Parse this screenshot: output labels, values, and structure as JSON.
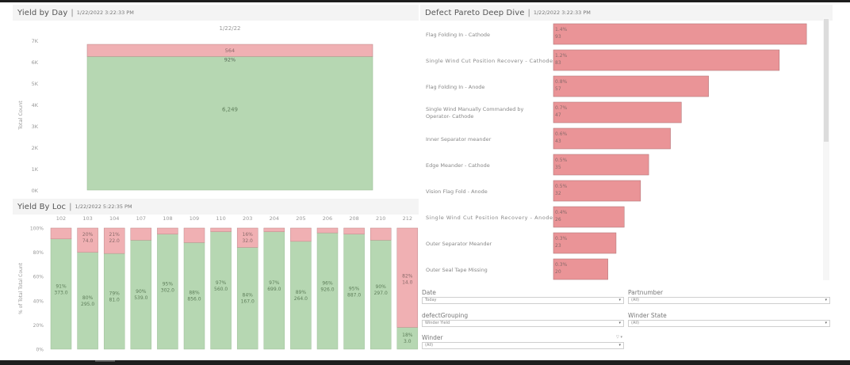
{
  "colors": {
    "good": "#b6d7b2",
    "good_border": "#9fbf9a",
    "defect": "#f0b0b3",
    "defect_border": "#c08a8c",
    "pareto_bar": "#ea9497",
    "pareto_border": "#b5787b",
    "axis_text": "#999999",
    "label_text": "#8a6a6a",
    "good_label": "#5f7f5b"
  },
  "yield_by_day": {
    "title": "Yield by Day",
    "timestamp": "1/22/2022 3:22:33 PM"
  },
  "yield_by_loc": {
    "title": "Yield By Loc",
    "timestamp": "1/22/2022 5:22:35 PM"
  },
  "pareto": {
    "title": "Defect Pareto Deep Dive",
    "timestamp": "1/22/2022 3:22:33 PM"
  },
  "filters": [
    {
      "label": "Date",
      "value": "Today"
    },
    {
      "label": "Partnumber",
      "value": "(All)"
    },
    {
      "label": "defectGrouping",
      "value": "Winder Yield"
    },
    {
      "label": "Winder State",
      "value": "(All)"
    },
    {
      "label": "Winder",
      "value": "(All)",
      "extra": "▽ ▾"
    }
  ],
  "chart_data": [
    {
      "type": "bar",
      "stacked": true,
      "title": "Yield by Day",
      "categories": [
        "1/22/22"
      ],
      "xlabel": "",
      "ylabel": "Total Count",
      "ylim": [
        0,
        7000
      ],
      "yticks": [
        "0K",
        "1K",
        "2K",
        "3K",
        "4K",
        "5K",
        "6K",
        "7K"
      ],
      "series": [
        {
          "name": "Good",
          "values": [
            6249
          ],
          "labels": [
            "6,249"
          ]
        },
        {
          "name": "Defect",
          "values": [
            564
          ],
          "labels": [
            "564"
          ],
          "pct_labels": [
            "92%"
          ]
        }
      ],
      "grid": false,
      "legend": "none"
    },
    {
      "type": "bar",
      "stacked": true,
      "percent": true,
      "title": "Yield By Loc",
      "categories": [
        "102",
        "103",
        "104",
        "107",
        "108",
        "109",
        "110",
        "203",
        "204",
        "205",
        "206",
        "208",
        "210",
        "212"
      ],
      "xlabel": "",
      "ylabel": "% of Total Total Count",
      "ylim": [
        0,
        100
      ],
      "yticks": [
        "0%",
        "20%",
        "40%",
        "60%",
        "80%",
        "100%"
      ],
      "series": [
        {
          "name": "Good",
          "pct": [
            91,
            80,
            79,
            90,
            95,
            88,
            97,
            84,
            97,
            89,
            96,
            95,
            90,
            18
          ],
          "counts": [
            "373.0",
            "295.0",
            "81.0",
            "539.0",
            "302.0",
            "856.0",
            "560.0",
            "167.0",
            "699.0",
            "264.0",
            "926.0",
            "887.0",
            "297.0",
            "3.0"
          ],
          "labels_shown": [
            true,
            true,
            true,
            true,
            true,
            true,
            true,
            true,
            true,
            true,
            true,
            true,
            true,
            true
          ]
        },
        {
          "name": "Defect",
          "pct": [
            9,
            20,
            21,
            10,
            5,
            12,
            3,
            16,
            3,
            11,
            4,
            5,
            10,
            82
          ],
          "counts": [
            "",
            "74.0",
            "22.0",
            "",
            "",
            "",
            "",
            "32.0",
            "",
            "",
            "",
            "",
            "",
            "14.0"
          ],
          "labels_shown": [
            false,
            true,
            true,
            false,
            false,
            false,
            false,
            true,
            false,
            false,
            false,
            false,
            false,
            true
          ]
        }
      ],
      "grid": false,
      "legend": "none"
    },
    {
      "type": "bar",
      "orientation": "horizontal",
      "title": "Defect Pareto Deep Dive",
      "categories": [
        "Flag Folding In - Cathode",
        "Single Wind Cut Position Recovery - Cathode",
        "Flag Folding In - Anode",
        "Single Wind Manually Commanded by Operator- Cathode",
        "Inner Separator meander",
        "Edge Meander - Cathode",
        "Vision Flag Fold - Anode",
        "Single Wind Cut Position Recovery - Anode",
        "Outer Separator Meander",
        "Outer Seal Tape Missing"
      ],
      "values": [
        93,
        83,
        57,
        47,
        43,
        35,
        32,
        26,
        23,
        20
      ],
      "pct_labels": [
        "1.4%",
        "1.2%",
        "0.8%",
        "0.7%",
        "0.6%",
        "0.5%",
        "0.5%",
        "0.4%",
        "0.3%",
        "0.3%"
      ],
      "xlim": [
        0,
        95
      ],
      "grid": false,
      "legend": "none"
    }
  ]
}
